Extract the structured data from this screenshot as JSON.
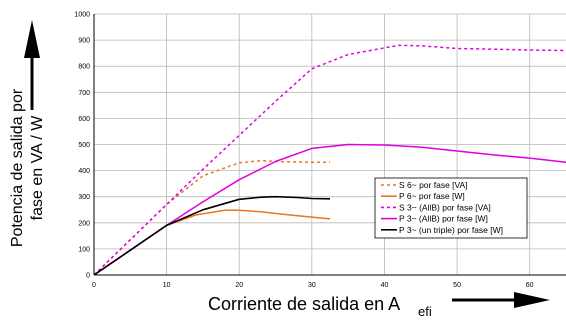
{
  "chart_data": {
    "type": "line",
    "xlabel": "Corriente de salida en A",
    "xlabel_sub": "efi",
    "ylabel_line1": "Potencia de salida por",
    "ylabel_line2": "fase en VA / W",
    "xlim": [
      0,
      65
    ],
    "ylim": [
      0,
      1000
    ],
    "xticks": [
      0,
      10,
      20,
      30,
      40,
      50,
      60
    ],
    "yticks": [
      0,
      100,
      200,
      300,
      400,
      500,
      600,
      700,
      800,
      900,
      1000
    ],
    "grid": true,
    "legend_position": "center-right",
    "series": [
      {
        "name": "S 6~ por fase [VA]",
        "color": "#e87722",
        "dash": "dotted",
        "x": [
          0,
          5,
          10,
          15,
          20,
          23,
          26,
          30,
          32.5
        ],
        "y": [
          0,
          135,
          270,
          380,
          430,
          438,
          434,
          432,
          432
        ]
      },
      {
        "name": "P 6~ por fase [W]",
        "color": "#e87722",
        "dash": "solid",
        "x": [
          0,
          5,
          10,
          14,
          18,
          20,
          23,
          26,
          30,
          32.5
        ],
        "y": [
          0,
          95,
          190,
          230,
          248,
          248,
          242,
          233,
          222,
          215
        ]
      },
      {
        "name": "S 3~ (AllB) por fase [VA]",
        "color": "#e000e0",
        "dash": "dotted",
        "x": [
          0,
          5,
          10,
          15,
          20,
          25,
          30,
          35,
          40,
          42,
          45,
          50,
          55,
          60,
          65
        ],
        "y": [
          0,
          135,
          270,
          405,
          535,
          665,
          790,
          845,
          870,
          880,
          878,
          868,
          865,
          862,
          860
        ]
      },
      {
        "name": "P 3~ (AllB) por fase [W]",
        "color": "#e000e0",
        "dash": "solid",
        "x": [
          0,
          5,
          10,
          15,
          20,
          25,
          30,
          35,
          40,
          45,
          50,
          55,
          60,
          65
        ],
        "y": [
          0,
          95,
          190,
          280,
          365,
          435,
          485,
          500,
          498,
          490,
          475,
          460,
          448,
          432
        ]
      },
      {
        "name": "P 3~ (un triple) por fase [W]",
        "color": "#000000",
        "dash": "solid",
        "x": [
          0,
          5,
          10,
          15,
          20,
          23,
          25,
          28,
          30,
          32.5
        ],
        "y": [
          0,
          95,
          190,
          250,
          290,
          298,
          300,
          297,
          293,
          292
        ]
      }
    ]
  }
}
